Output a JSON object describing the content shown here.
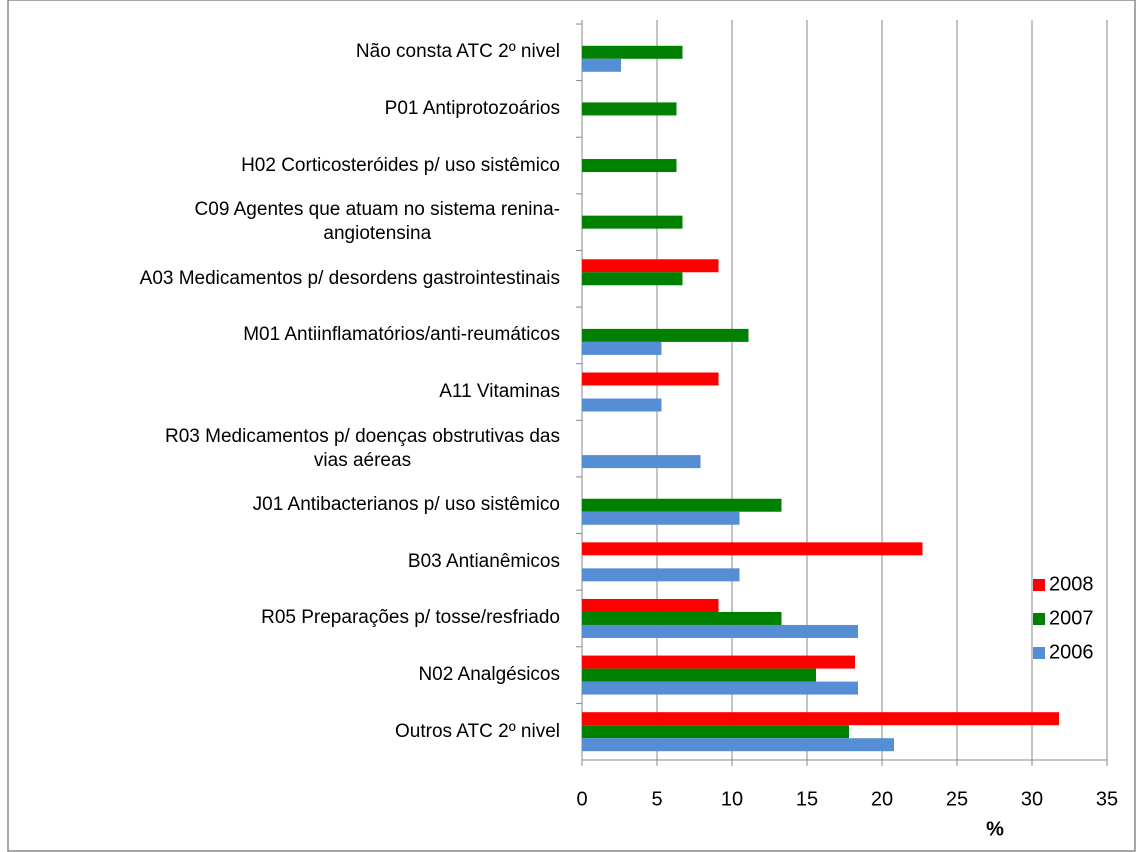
{
  "chart_data": {
    "type": "barh",
    "categories": [
      "Não consta ATC 2º nivel",
      "P01 Antiprotozoários",
      "H02 Corticosteróides p/ uso sistêmico",
      "C09 Agentes que atuam no sistema renina-\nangiotensina",
      "A03 Medicamentos p/ desordens gastrointestinais",
      "M01 Antiinflamatórios/anti-reumáticos",
      "A11 Vitaminas",
      "R03 Medicamentos p/ doenças obstrutivas das\nvias aéreas",
      "J01 Antibacterianos p/ uso sistêmico",
      "B03 Antianêmicos",
      "R05 Preparações p/ tosse/resfriado",
      "N02 Analgésicos",
      "Outros ATC 2º nivel"
    ],
    "series": [
      {
        "name": "2008",
        "color": "#ff0000",
        "values": [
          null,
          null,
          null,
          null,
          9.1,
          null,
          9.1,
          null,
          null,
          22.7,
          9.1,
          18.2,
          31.8
        ]
      },
      {
        "name": "2007",
        "color": "#008000",
        "values": [
          6.7,
          6.3,
          6.3,
          6.7,
          6.7,
          11.1,
          null,
          null,
          13.3,
          null,
          13.3,
          15.6,
          17.8
        ]
      },
      {
        "name": "2006",
        "color": "#558ed5",
        "values": [
          2.6,
          null,
          null,
          null,
          null,
          5.3,
          5.3,
          7.9,
          10.5,
          10.5,
          18.4,
          18.4,
          20.8
        ]
      }
    ],
    "xlabel": "%",
    "xlim": [
      0,
      35
    ],
    "xticks": [
      0,
      5,
      10,
      15,
      20,
      25,
      30,
      35
    ],
    "grid": true,
    "legend": "right"
  }
}
